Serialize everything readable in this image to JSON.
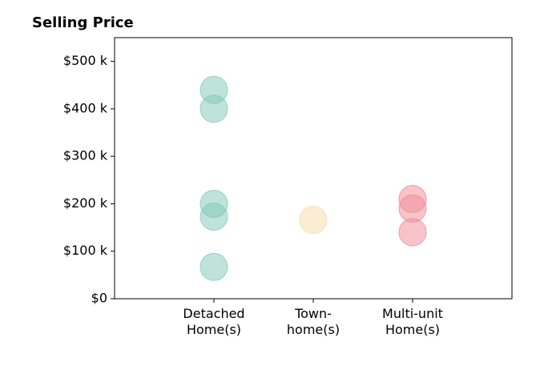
{
  "chart_data": {
    "type": "strip",
    "title": "Selling Price",
    "categories": [
      "Detached\nHome(s)",
      "Town-\nhome(s)",
      "Multi-unit\nHome(s)"
    ],
    "values": [
      [
        440000,
        400000,
        200000,
        173000,
        67000
      ],
      [
        166000
      ],
      [
        210000,
        190000,
        140000
      ]
    ],
    "colors": [
      "#7fc8b8",
      "#f5dcaa",
      "#f08a96"
    ],
    "xlim": [
      -1,
      3
    ],
    "ylim": [
      0,
      550000
    ],
    "yticks": [
      {
        "value": 0,
        "label": "$0"
      },
      {
        "value": 100000,
        "label": "$100 k"
      },
      {
        "value": 200000,
        "label": "$200 k"
      },
      {
        "value": 300000,
        "label": "$300 k"
      },
      {
        "value": 400000,
        "label": "$400 k"
      },
      {
        "value": 500000,
        "label": "$500 k"
      }
    ]
  }
}
